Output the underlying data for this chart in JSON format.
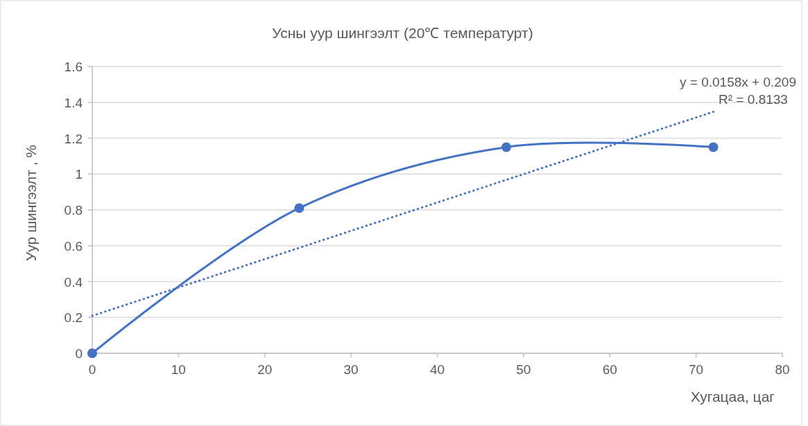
{
  "chart_data": {
    "type": "line",
    "title": "Усны уур шингээлт  (20℃ температурт)",
    "xlabel": "Хугацаа, цаг",
    "ylabel": "Уур шингээлт , %",
    "xlim": [
      0,
      80
    ],
    "xticks": [
      0,
      10,
      20,
      30,
      40,
      50,
      60,
      70,
      80
    ],
    "ylim": [
      0,
      1.6
    ],
    "yticks": [
      0,
      0.2,
      0.4,
      0.6,
      0.8,
      1,
      1.2,
      1.4,
      1.6
    ],
    "grid": "y",
    "series": [
      {
        "color": "#4472c4",
        "x": [
          0,
          24,
          48,
          72
        ],
        "values": [
          0,
          0.81,
          1.15,
          1.15
        ],
        "marker": "circle",
        "line_style": "solid"
      },
      {
        "color": "#4472c4",
        "x": [
          0,
          72
        ],
        "values": [
          0.209,
          1.347
        ],
        "marker": "none",
        "line_style": "dotted"
      }
    ],
    "annotations": [
      "y = 0.0158x + 0.209",
      "R² = 0.8133"
    ]
  }
}
